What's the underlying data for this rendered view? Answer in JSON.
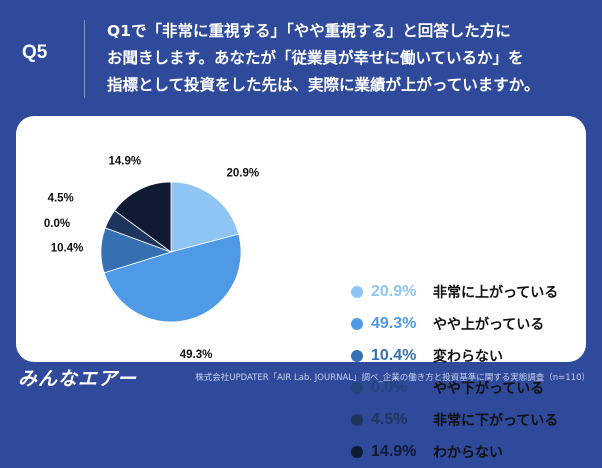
{
  "header": {
    "qnum": "Q5",
    "question_lines": [
      "Q1で「非常に重視する」「やや重視する」と回答した方に",
      "お聞きします。あなたが「従業員が幸せに働いているか」を",
      "指標として投資をした先は、実際に業績が上がっていますか。"
    ]
  },
  "chart_data": {
    "type": "pie",
    "title": "",
    "slices": [
      {
        "label": "非常に上がっている",
        "value": 20.9,
        "display": "20.9%",
        "color": "#8ec5f5"
      },
      {
        "label": "やや上がっている",
        "value": 49.3,
        "display": "49.3%",
        "color": "#4f9ae6"
      },
      {
        "label": "変わらない",
        "value": 10.4,
        "display": "10.4%",
        "color": "#3670b3"
      },
      {
        "label": "やや下がっている",
        "value": 0.0,
        "display": "0.0%",
        "color": "#23457a"
      },
      {
        "label": "非常に下がっている",
        "value": 4.5,
        "display": "4.5%",
        "color": "#1e365d"
      },
      {
        "label": "わからない",
        "value": 14.9,
        "display": "14.9%",
        "color": "#0f1a33"
      }
    ],
    "legend_position": "right"
  },
  "footer": {
    "logo_text": "みんなエアー",
    "source": "株式会社UPDATER「AIR Lab. JOURNAL」調べ_企業の働き方と投資基準に関する実態調査（n=110）"
  }
}
